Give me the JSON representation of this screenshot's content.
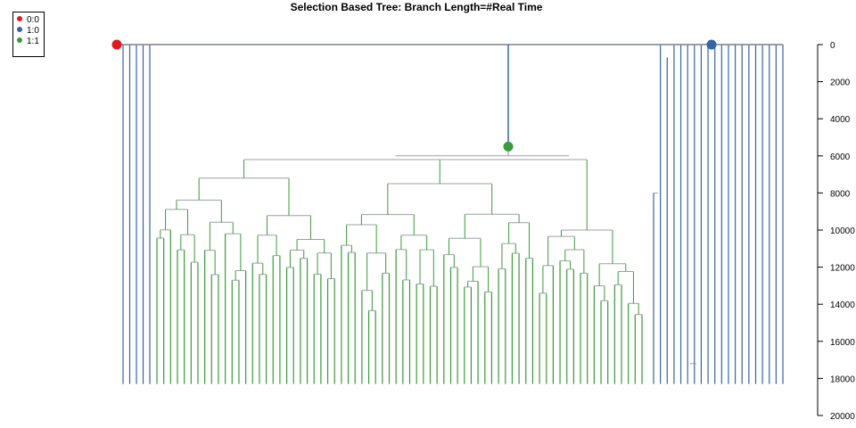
{
  "chart_data": {
    "type": "tree",
    "title": "Selection Based Tree: Branch Length=#Real Time",
    "xlabel": "",
    "ylabel": "",
    "ylim": [
      0,
      20000
    ],
    "y_ticks": [
      0,
      2000,
      4000,
      6000,
      8000,
      10000,
      12000,
      14000,
      16000,
      18000,
      20000
    ],
    "y_tick_labels": [
      "0",
      "2000",
      "4000",
      "6000",
      "8000",
      "10000",
      "12000",
      "14000",
      "16000",
      "18000",
      "20000"
    ],
    "y_axis_side": "right",
    "legend_position": "top-left",
    "legend": [
      {
        "label": "0:0",
        "color": "#e31a1c"
      },
      {
        "label": "1:0",
        "color": "#3465a4"
      },
      {
        "label": "1:1",
        "color": "#3a9a3a"
      }
    ],
    "state_colors": {
      "0:0": "#e31a1c",
      "1:0": "#3465a4",
      "1:1": "#3a9a3a",
      "stem": "#9aa0a6"
    },
    "leaf_time": 18300,
    "blue_clade_leaf_count": 5,
    "green_clade_leaf_count": 72,
    "right_clade_leaf_count": 20,
    "nodes": [
      {
        "id": "root",
        "time": 0,
        "state": "0:0",
        "marker": true
      },
      {
        "id": "transition_1_0",
        "time": 0,
        "state": "1:0",
        "marker": true
      },
      {
        "id": "transition_1_1",
        "time": 5500,
        "state": "1:1",
        "marker": true
      },
      {
        "id": "green_root",
        "time": 6000
      },
      {
        "id": "green_main",
        "time": 6200
      },
      {
        "id": "green_left",
        "time": 7200
      },
      {
        "id": "green_mid",
        "time": 7500
      },
      {
        "id": "green_right",
        "time": 7900
      },
      {
        "id": "green_far_right",
        "time": 10000
      }
    ]
  }
}
